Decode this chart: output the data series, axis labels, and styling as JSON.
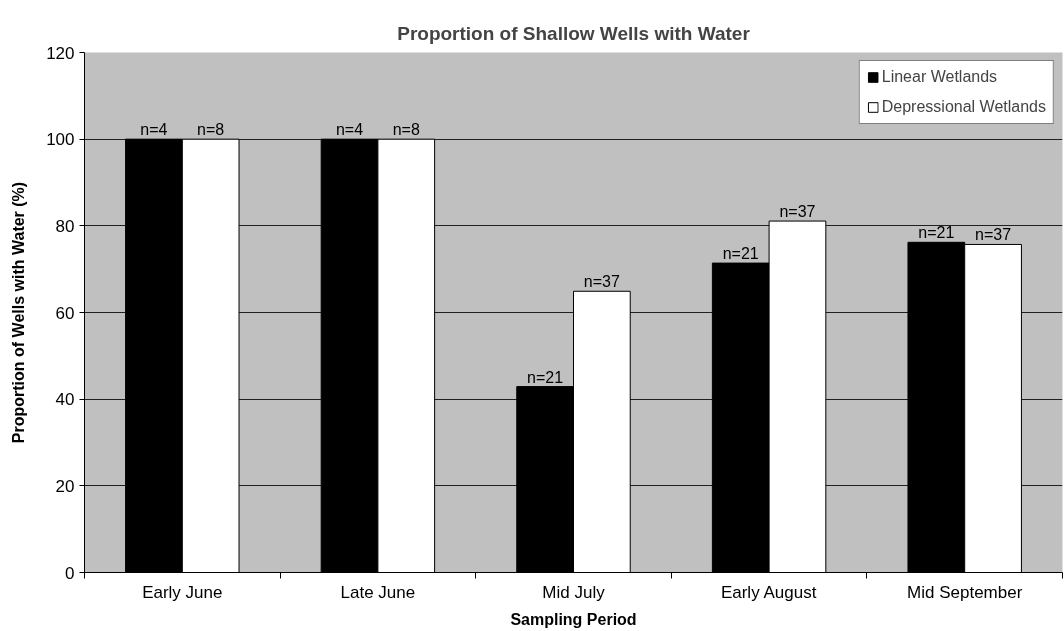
{
  "chart_data": {
    "type": "bar",
    "title": "Proportion of Shallow Wells with Water",
    "xlabel": "Sampling Period",
    "ylabel": "Proportion of Wells with Water (%)",
    "categories": [
      "Early June",
      "Late June",
      "Mid July",
      "Early August",
      "Mid September"
    ],
    "series": [
      {
        "name": "Linear Wetlands",
        "color": "#000000",
        "values": [
          100,
          100,
          42.9,
          71.4,
          76.2
        ]
      },
      {
        "name": "Depressional Wetlands",
        "color": "#ffffff",
        "values": [
          100,
          100,
          64.9,
          81.1,
          75.7
        ]
      }
    ],
    "annotations": [
      {
        "text": "n=4",
        "x": "Early June",
        "y": 100
      },
      {
        "text": "n=8",
        "x": "Early June",
        "y": 100
      },
      {
        "text": "n=4",
        "x": "Late June",
        "y": 100
      },
      {
        "text": "n=8",
        "x": "Late June",
        "y": 100
      },
      {
        "text": "n=21",
        "x": "Mid July",
        "y": 42.9
      },
      {
        "text": "n=37",
        "x": "Mid July",
        "y": 64.9
      },
      {
        "text": "n=21",
        "x": "Early August",
        "y": 71.4
      },
      {
        "text": "n=37",
        "x": "Early August",
        "y": 81.1
      },
      {
        "text": "n=21",
        "x": "Mid September",
        "y": 76.2
      },
      {
        "text": "n=37",
        "x": "Mid September",
        "y": 75.7
      }
    ],
    "ylim": [
      0,
      120
    ],
    "yticks": [
      0,
      20,
      40,
      60,
      80,
      100,
      120
    ],
    "grid": "y",
    "legend": "top right"
  }
}
